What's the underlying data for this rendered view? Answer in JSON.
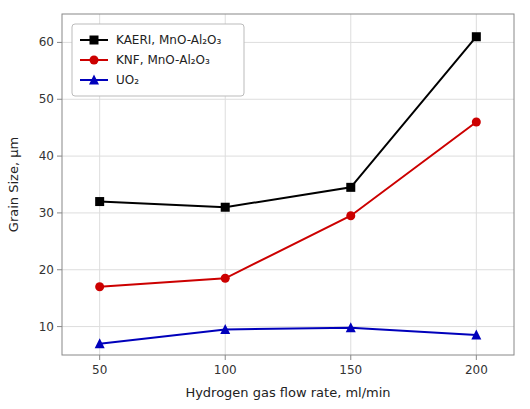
{
  "chart_data": {
    "type": "line",
    "x": [
      50,
      100,
      150,
      200
    ],
    "series": [
      {
        "name": "KAERI, MnO-Al₂O₃",
        "color": "#000000",
        "marker": "square",
        "values": [
          32,
          31,
          34.5,
          61
        ]
      },
      {
        "name": "KNF, MnO-Al₂O₃",
        "color": "#cc0000",
        "marker": "circle",
        "values": [
          17,
          18.5,
          29.5,
          46
        ]
      },
      {
        "name": "UO₂",
        "color": "#0000bb",
        "marker": "triangle",
        "values": [
          7,
          9.5,
          9.8,
          8.5
        ]
      }
    ],
    "x_label": "Hydrogen gas flow rate, ml/min",
    "y_label": "Grain Size, μm",
    "xlim": [
      35,
      215
    ],
    "ylim": [
      5,
      65
    ],
    "xticks": [
      50,
      100,
      150,
      200
    ],
    "yticks": [
      10,
      20,
      30,
      40,
      50,
      60
    ],
    "grid": true,
    "legend": "upper left"
  }
}
